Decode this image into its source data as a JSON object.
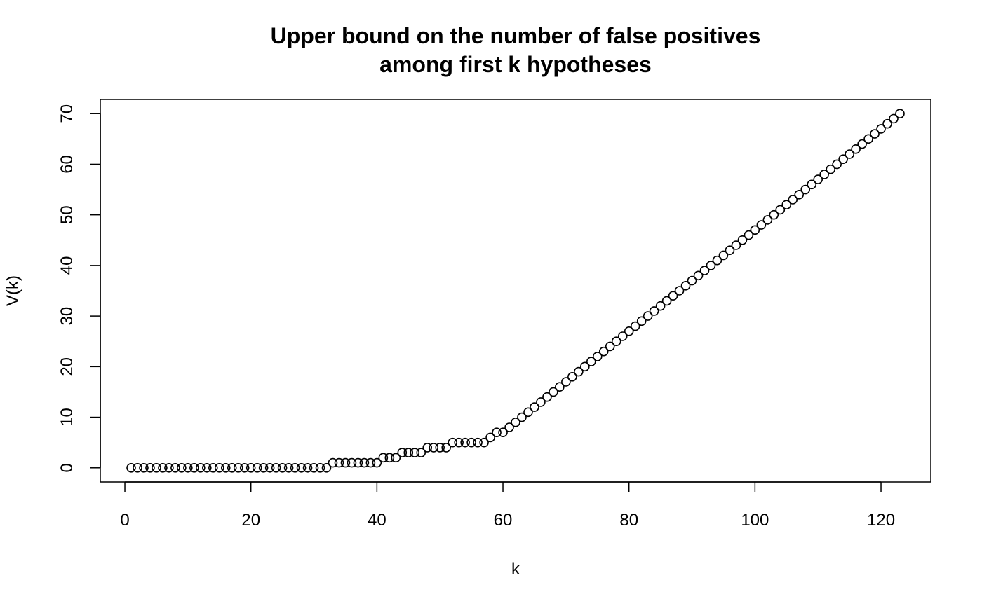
{
  "chart_data": {
    "type": "scatter",
    "title_lines": [
      "Upper bound on the number of false positives",
      "among first k hypotheses"
    ],
    "xlabel": "k",
    "ylabel": "V(k)",
    "xlim": [
      -3.9,
      127.9
    ],
    "ylim": [
      -2.8,
      72.8
    ],
    "x_ticks": [
      0,
      20,
      40,
      60,
      80,
      100,
      120
    ],
    "y_ticks": [
      0,
      10,
      20,
      30,
      40,
      50,
      60,
      70
    ],
    "marker": "open-circle",
    "grid": false,
    "legend": "none",
    "series": [
      {
        "x": [
          1,
          2,
          3,
          4,
          5,
          6,
          7,
          8,
          9,
          10,
          11,
          12,
          13,
          14,
          15,
          16,
          17,
          18,
          19,
          20,
          21,
          22,
          23,
          24,
          25,
          26,
          27,
          28,
          29,
          30,
          31,
          32,
          33,
          34,
          35,
          36,
          37,
          38,
          39,
          40,
          41,
          42,
          43,
          44,
          45,
          46,
          47,
          48,
          49,
          50,
          51,
          52,
          53,
          54,
          55,
          56,
          57,
          58,
          59,
          60,
          61,
          62,
          63,
          64,
          65,
          66,
          67,
          68,
          69,
          70,
          71,
          72,
          73,
          74,
          75,
          76,
          77,
          78,
          79,
          80,
          81,
          82,
          83,
          84,
          85,
          86,
          87,
          88,
          89,
          90,
          91,
          92,
          93,
          94,
          95,
          96,
          97,
          98,
          99,
          100,
          101,
          102,
          103,
          104,
          105,
          106,
          107,
          108,
          109,
          110,
          111,
          112,
          113,
          114,
          115,
          116,
          117,
          118,
          119,
          120,
          121,
          122,
          123
        ],
        "y": [
          0,
          0,
          0,
          0,
          0,
          0,
          0,
          0,
          0,
          0,
          0,
          0,
          0,
          0,
          0,
          0,
          0,
          0,
          0,
          0,
          0,
          0,
          0,
          0,
          0,
          0,
          0,
          0,
          0,
          0,
          0,
          0,
          1,
          1,
          1,
          1,
          1,
          1,
          1,
          1,
          2,
          2,
          2,
          3,
          3,
          3,
          3,
          4,
          4,
          4,
          4,
          5,
          5,
          5,
          5,
          5,
          5,
          6,
          7,
          7,
          8,
          9,
          10,
          11,
          12,
          13,
          14,
          15,
          16,
          17,
          18,
          19,
          20,
          21,
          22,
          23,
          24,
          25,
          26,
          27,
          28,
          29,
          30,
          31,
          32,
          33,
          34,
          35,
          36,
          37,
          38,
          39,
          40,
          41,
          42,
          43,
          44,
          45,
          46,
          47,
          48,
          49,
          50,
          51,
          52,
          53,
          54,
          55,
          56,
          57,
          58,
          59,
          60,
          61,
          62,
          63,
          64,
          65,
          66,
          67,
          68,
          69,
          70
        ]
      }
    ]
  }
}
